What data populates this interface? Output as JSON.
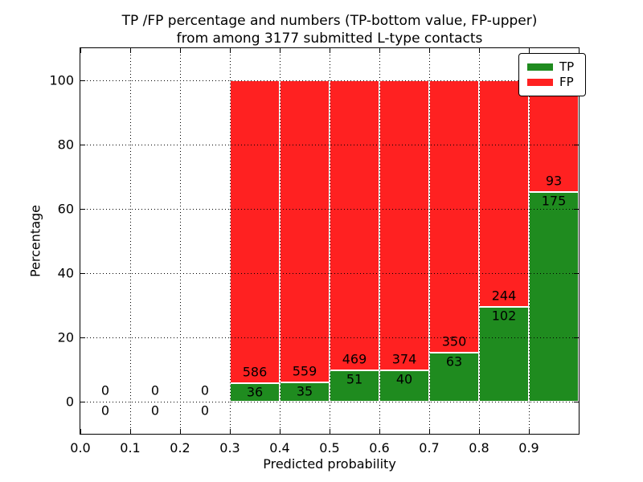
{
  "chart_data": {
    "type": "bar",
    "stacked": true,
    "percentage_scale": true,
    "title": "TP /FP percentage and numbers (TP-bottom value, FP-upper)",
    "subtitle": "from among 3177 submitted L-type contacts",
    "xlabel": "Predicted probability",
    "ylabel": "Percentage",
    "xlim": [
      0.0,
      1.0
    ],
    "ylim": [
      -10,
      110
    ],
    "xticks": [
      "0.0",
      "0.1",
      "0.2",
      "0.3",
      "0.4",
      "0.5",
      "0.6",
      "0.7",
      "0.8",
      "0.9"
    ],
    "yticks": [
      0,
      20,
      40,
      60,
      80,
      100
    ],
    "grid": "dotted black, x and y",
    "legend": {
      "position": "upper right",
      "items": [
        {
          "label": "TP",
          "color": "#1f8b1f"
        },
        {
          "label": "FP",
          "color": "#ff2121"
        }
      ]
    },
    "bins": [
      {
        "range": [
          0.0,
          0.1
        ],
        "tp": 0,
        "fp": 0
      },
      {
        "range": [
          0.1,
          0.2
        ],
        "tp": 0,
        "fp": 0
      },
      {
        "range": [
          0.2,
          0.3
        ],
        "tp": 0,
        "fp": 0
      },
      {
        "range": [
          0.3,
          0.4
        ],
        "tp": 36,
        "fp": 586
      },
      {
        "range": [
          0.4,
          0.5
        ],
        "tp": 35,
        "fp": 559
      },
      {
        "range": [
          0.5,
          0.6
        ],
        "tp": 51,
        "fp": 469
      },
      {
        "range": [
          0.6,
          0.7
        ],
        "tp": 40,
        "fp": 374
      },
      {
        "range": [
          0.7,
          0.8
        ],
        "tp": 63,
        "fp": 350
      },
      {
        "range": [
          0.8,
          0.9
        ],
        "tp": 102,
        "fp": 244
      },
      {
        "range": [
          0.9,
          1.0
        ],
        "tp": 175,
        "fp": 93
      }
    ],
    "total_submitted": 3177
  }
}
